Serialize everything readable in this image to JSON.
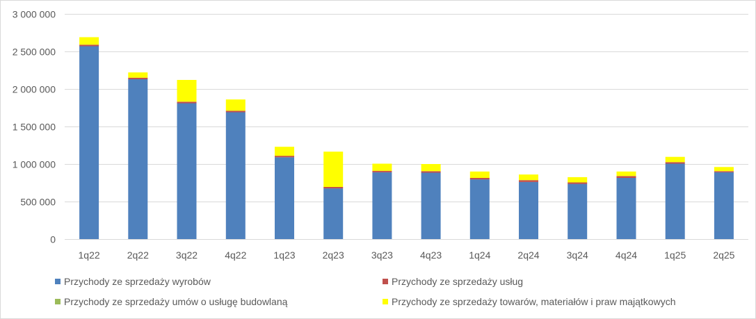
{
  "chart_data": {
    "type": "bar",
    "stacked": true,
    "categories": [
      "1q22",
      "2q22",
      "3q22",
      "4q22",
      "1q23",
      "2q23",
      "3q23",
      "4q23",
      "1q24",
      "2q24",
      "3q24",
      "4q24",
      "1q25",
      "2q25"
    ],
    "series": [
      {
        "name": "Przychody ze sprzedaży wyrobów",
        "color": "#4f81bd",
        "values": [
          2570000,
          2130000,
          1810000,
          1690000,
          1090000,
          675000,
          890000,
          885000,
          795000,
          760000,
          735000,
          815000,
          1005000,
          890000
        ]
      },
      {
        "name": "Przychody ze sprzedaży usług",
        "color": "#c0504d",
        "values": [
          20000,
          20000,
          20000,
          20000,
          20000,
          20000,
          20000,
          20000,
          20000,
          25000,
          20000,
          25000,
          20000,
          15000
        ]
      },
      {
        "name": "Przychody ze sprzedaży umów o usługę budowlaną",
        "color": "#9bbb59",
        "values": [
          0,
          0,
          0,
          0,
          0,
          0,
          0,
          0,
          0,
          0,
          0,
          0,
          0,
          0
        ]
      },
      {
        "name": "Przychody ze sprzedaży towarów, materiałów i praw majątkowych",
        "color": "#ffff00",
        "values": [
          100000,
          70000,
          290000,
          150000,
          120000,
          470000,
          95000,
          95000,
          85000,
          75000,
          70000,
          60000,
          70000,
          55000
        ]
      }
    ],
    "y_ticks": [
      "0",
      "500 000",
      "1 000 000",
      "1 500 000",
      "2 000 000",
      "2 500 000",
      "3 000 000"
    ],
    "ylim": [
      0,
      3000000
    ],
    "gridlines": true,
    "legend_position": "bottom"
  }
}
